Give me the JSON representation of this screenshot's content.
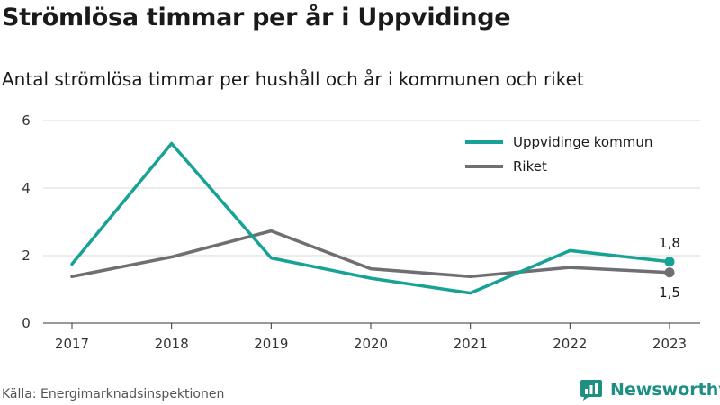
{
  "title": "Strömlösa timmar per år i Uppvidinge",
  "subtitle": "Antal strömlösa timmar per hushåll och år i kommunen och riket",
  "source": "Källa: Energimarknadsinspektionen",
  "logo_text": "Newsworthy",
  "logo_icon": "bar-chart-bubble-icon",
  "chart_data": {
    "type": "line",
    "x": [
      "2017",
      "2018",
      "2019",
      "2020",
      "2021",
      "2022",
      "2023"
    ],
    "ylim": [
      0,
      6
    ],
    "yticks": [
      0,
      2,
      4,
      6
    ],
    "grid": true,
    "legend_position": "top-right",
    "series": [
      {
        "name": "Uppvidinge kommun",
        "color": "#18a295",
        "values": [
          1.75,
          5.32,
          1.93,
          1.33,
          0.89,
          2.15,
          1.82
        ]
      },
      {
        "name": "Riket",
        "color": "#6e6e73",
        "values": [
          1.38,
          1.96,
          2.73,
          1.61,
          1.38,
          1.65,
          1.5
        ]
      }
    ],
    "end_labels": [
      "1,8",
      "1,5"
    ]
  }
}
